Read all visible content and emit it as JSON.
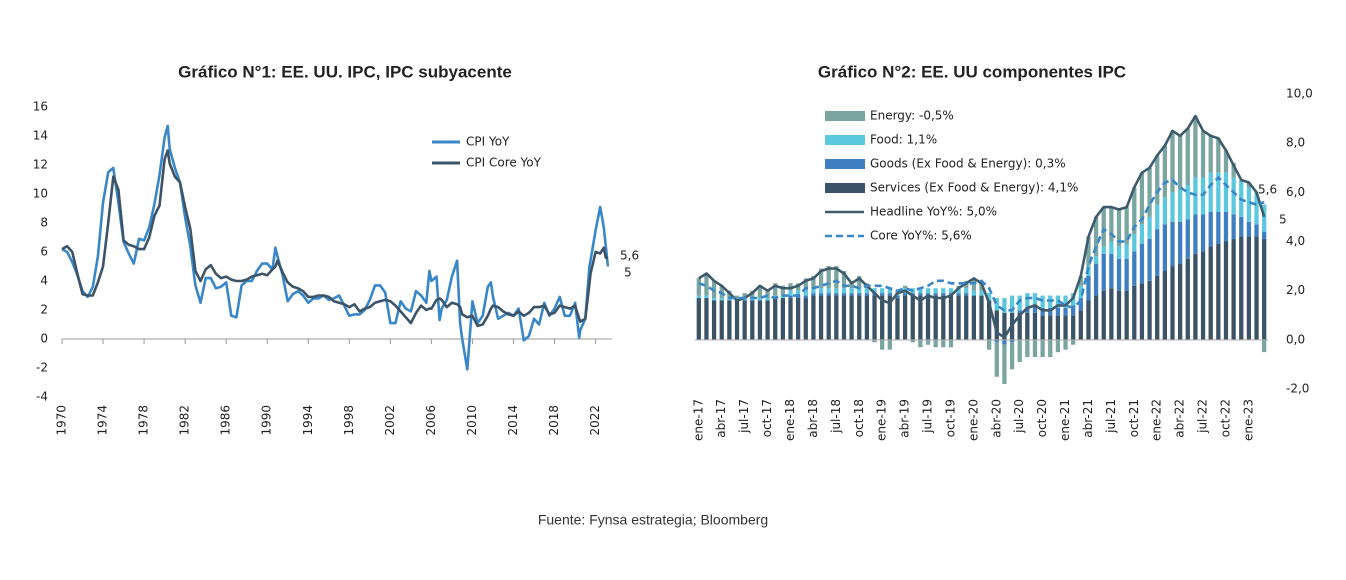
{
  "chart_data": [
    {
      "type": "line",
      "title": "Gráfico N°1:  EE. UU. IPC, IPC subyacente",
      "x": [
        1970,
        1970.5,
        1971,
        1971.5,
        1972,
        1972.5,
        1973,
        1973.5,
        1974,
        1974.5,
        1975,
        1975.5,
        1976,
        1976.5,
        1977,
        1977.5,
        1978,
        1978.5,
        1979,
        1979.5,
        1980,
        1980.3,
        1980.5,
        1981,
        1981.5,
        1982,
        1982.5,
        1983,
        1983.5,
        1984,
        1984.5,
        1985,
        1985.5,
        1986,
        1986.5,
        1987,
        1987.5,
        1988,
        1988.5,
        1989,
        1989.5,
        1990,
        1990.5,
        1990.8,
        1991,
        1991.5,
        1992,
        1992.5,
        1993,
        1993.5,
        1994,
        1994.5,
        1995,
        1995.5,
        1996,
        1996.5,
        1997,
        1997.5,
        1998,
        1998.5,
        1999,
        1999.5,
        2000,
        2000.5,
        2001,
        2001.5,
        2002,
        2002.5,
        2003,
        2003.5,
        2004,
        2004.5,
        2005,
        2005.5,
        2005.8,
        2006,
        2006.5,
        2006.8,
        2007,
        2007.5,
        2008,
        2008.5,
        2008.8,
        2009,
        2009.5,
        2010,
        2010.5,
        2011,
        2011.5,
        2011.8,
        2012,
        2012.5,
        2013,
        2013.5,
        2014,
        2014.5,
        2015,
        2015.5,
        2016,
        2016.5,
        2017,
        2017.5,
        2018,
        2018.5,
        2019,
        2019.5,
        2020,
        2020.4,
        2020.5,
        2021,
        2021.4,
        2021.5,
        2022,
        2022.45,
        2022.8,
        2023,
        2023.2
      ],
      "series": [
        {
          "name": "CPI YoY",
          "color": "#3a87c8",
          "values": [
            6.2,
            6.0,
            5.3,
            4.4,
            3.3,
            2.9,
            3.6,
            5.7,
            9.4,
            11.5,
            11.8,
            9.4,
            6.7,
            5.9,
            5.2,
            6.9,
            6.8,
            7.7,
            9.3,
            11.3,
            13.9,
            14.7,
            13.1,
            11.8,
            10.8,
            8.4,
            6.4,
            3.7,
            2.5,
            4.2,
            4.2,
            3.5,
            3.6,
            3.9,
            1.6,
            1.5,
            3.7,
            4.0,
            4.0,
            4.7,
            5.2,
            5.2,
            4.8,
            6.3,
            5.7,
            4.4,
            2.6,
            3.1,
            3.3,
            3.0,
            2.5,
            2.8,
            2.8,
            3.0,
            2.7,
            2.8,
            3.0,
            2.3,
            1.6,
            1.7,
            1.7,
            2.0,
            2.7,
            3.7,
            3.7,
            3.2,
            1.1,
            1.1,
            2.6,
            2.1,
            1.9,
            3.3,
            3.0,
            2.5,
            4.7,
            4.0,
            4.3,
            1.3,
            2.1,
            2.7,
            4.3,
            5.4,
            1.1,
            0.0,
            -2.1,
            2.6,
            1.1,
            1.6,
            3.6,
            3.9,
            2.9,
            1.4,
            1.6,
            1.8,
            1.6,
            2.1,
            -0.1,
            0.2,
            1.4,
            1.0,
            2.5,
            1.6,
            2.1,
            2.9,
            1.6,
            1.6,
            2.5,
            0.1,
            0.6,
            1.4,
            5.0,
            5.4,
            7.5,
            9.1,
            7.7,
            6.4,
            5.0
          ]
        },
        {
          "name": "CPI  Core YoY",
          "color": "#3d5468",
          "values": [
            6.2,
            6.4,
            6.0,
            4.5,
            3.1,
            3.0,
            3.0,
            3.9,
            5.0,
            8.0,
            11.2,
            10.3,
            6.8,
            6.5,
            6.4,
            6.2,
            6.2,
            7.0,
            8.5,
            9.2,
            12.4,
            13.0,
            12.1,
            11.2,
            10.8,
            9.1,
            7.6,
            4.7,
            4.0,
            4.8,
            5.1,
            4.5,
            4.2,
            4.3,
            4.1,
            4.0,
            4.0,
            4.1,
            4.3,
            4.4,
            4.5,
            4.4,
            4.8,
            5.0,
            5.4,
            4.6,
            3.9,
            3.6,
            3.5,
            3.3,
            2.9,
            2.9,
            3.0,
            3.0,
            2.9,
            2.6,
            2.5,
            2.4,
            2.2,
            2.4,
            1.9,
            2.1,
            2.2,
            2.5,
            2.6,
            2.7,
            2.6,
            2.3,
            1.9,
            1.5,
            1.1,
            1.8,
            2.3,
            2.0,
            2.1,
            2.1,
            2.7,
            2.8,
            2.7,
            2.2,
            2.5,
            2.4,
            2.2,
            1.7,
            1.5,
            1.6,
            0.9,
            1.0,
            1.6,
            2.1,
            2.3,
            2.2,
            1.9,
            1.7,
            1.6,
            1.9,
            1.6,
            1.8,
            2.2,
            2.2,
            2.3,
            1.7,
            1.8,
            2.3,
            2.2,
            2.1,
            2.3,
            1.4,
            1.2,
            1.4,
            3.8,
            4.5,
            6.0,
            5.9,
            6.3,
            5.6,
            5.6
          ]
        }
      ],
      "annotations": [
        "5,6",
        "5"
      ],
      "xlim": [
        1970,
        2023.6
      ],
      "xticks": [
        1970,
        1974,
        1978,
        1982,
        1986,
        1990,
        1994,
        1998,
        2002,
        2006,
        2010,
        2014,
        2018,
        2022
      ],
      "ylim": [
        -4,
        16
      ],
      "yticks": [
        -4,
        -2,
        0,
        2,
        4,
        6,
        8,
        10,
        12,
        14,
        16
      ],
      "grid": false,
      "legend": "upper right"
    },
    {
      "type": "bar",
      "title": "Gráfico N°2:  EE. UU componentes IPC",
      "categories": [
        "ene-17",
        null,
        null,
        "abr-17",
        null,
        null,
        "jul-17",
        null,
        null,
        "oct-17",
        null,
        null,
        "ene-18",
        null,
        null,
        "abr-18",
        null,
        null,
        "jul-18",
        null,
        null,
        "oct-18",
        null,
        null,
        "ene-19",
        null,
        null,
        "abr-19",
        null,
        null,
        "jul-19",
        null,
        null,
        "oct-19",
        null,
        null,
        "ene-20",
        null,
        null,
        "abr-20",
        null,
        null,
        "jul-20",
        null,
        null,
        "oct-20",
        null,
        null,
        "ene-21",
        null,
        null,
        "abr-21",
        null,
        null,
        "jul-21",
        null,
        null,
        "oct-21",
        null,
        null,
        "ene-22",
        null,
        null,
        "abr-22",
        null,
        null,
        "jul-22",
        null,
        null,
        "oct-22",
        null,
        null,
        "ene-23",
        null,
        null
      ],
      "stacked": true,
      "series": [
        {
          "name": "Energy: -0,5%",
          "type": "bar",
          "axis": "y2",
          "color": "#7aa5a0",
          "values": [
            0.7,
            0.9,
            0.7,
            0.5,
            0.3,
            0.1,
            0.2,
            0.3,
            0.5,
            0.3,
            0.5,
            0.4,
            0.3,
            0.3,
            0.5,
            0.5,
            0.8,
            0.9,
            0.9,
            0.7,
            0.3,
            0.5,
            0.2,
            -0.1,
            -0.4,
            -0.4,
            0.0,
            0.1,
            -0.1,
            -0.3,
            -0.2,
            -0.3,
            -0.3,
            -0.3,
            0.1,
            0.3,
            0.5,
            0.3,
            -0.4,
            -1.4,
            -1.6,
            -1.1,
            -0.9,
            -0.7,
            -0.7,
            -0.7,
            -0.7,
            -0.5,
            -0.4,
            -0.2,
            0.4,
            1.2,
            1.6,
            1.6,
            1.4,
            1.5,
            1.5,
            1.9,
            2.1,
            2.0,
            2.0,
            2.1,
            2.5,
            2.2,
            2.3,
            2.5,
            1.9,
            1.5,
            1.4,
            0.9,
            0.6,
            0.0,
            0.2,
            0.0,
            -0.5
          ]
        },
        {
          "name": "Food: 1,1%",
          "type": "bar",
          "axis": "y2",
          "color": "#5bc8dd",
          "values": [
            0.1,
            0.1,
            0.1,
            0.1,
            0.1,
            0.1,
            0.1,
            0.1,
            0.1,
            0.1,
            0.1,
            0.1,
            0.2,
            0.2,
            0.2,
            0.2,
            0.2,
            0.2,
            0.2,
            0.2,
            0.2,
            0.2,
            0.2,
            0.2,
            0.2,
            0.2,
            0.2,
            0.2,
            0.2,
            0.2,
            0.2,
            0.2,
            0.2,
            0.2,
            0.2,
            0.2,
            0.2,
            0.2,
            0.3,
            0.5,
            0.6,
            0.7,
            0.6,
            0.6,
            0.5,
            0.5,
            0.5,
            0.5,
            0.5,
            0.5,
            0.5,
            0.4,
            0.3,
            0.3,
            0.5,
            0.5,
            0.6,
            0.7,
            0.8,
            0.9,
            1.0,
            1.1,
            1.2,
            1.3,
            1.4,
            1.5,
            1.5,
            1.6,
            1.6,
            1.6,
            1.5,
            1.5,
            1.4,
            1.3,
            1.1
          ]
        },
        {
          "name": "Goods (Ex Food & Energy): 0,3%",
          "type": "bar",
          "axis": "y2",
          "color": "#3f7fc1",
          "values": [
            0.0,
            0.0,
            0.0,
            0.0,
            0.0,
            0.0,
            0.0,
            0.0,
            0.0,
            0.0,
            0.0,
            0.0,
            0.1,
            0.1,
            0.1,
            0.1,
            0.1,
            0.1,
            0.1,
            0.1,
            0.1,
            0.1,
            0.1,
            0.1,
            0.1,
            0.1,
            0.1,
            0.1,
            0.1,
            0.1,
            0.1,
            0.1,
            0.1,
            0.1,
            0.1,
            0.1,
            0.0,
            0.0,
            0.0,
            -0.1,
            -0.2,
            -0.1,
            0.1,
            0.2,
            0.3,
            0.3,
            0.3,
            0.3,
            0.3,
            0.4,
            0.5,
            1.0,
            1.3,
            1.5,
            1.4,
            1.3,
            1.3,
            1.4,
            1.6,
            1.7,
            1.9,
            1.9,
            1.8,
            1.7,
            1.6,
            1.6,
            1.5,
            1.4,
            1.3,
            1.2,
            1.0,
            0.8,
            0.6,
            0.5,
            0.3
          ]
        },
        {
          "name": "Services (Ex Food & Energy): 4,1%",
          "type": "bar",
          "axis": "y2",
          "color": "#3a5366",
          "values": [
            1.7,
            1.7,
            1.6,
            1.6,
            1.6,
            1.6,
            1.6,
            1.6,
            1.6,
            1.6,
            1.7,
            1.7,
            1.7,
            1.7,
            1.7,
            1.8,
            1.8,
            1.8,
            1.8,
            1.8,
            1.8,
            1.8,
            1.8,
            1.8,
            1.8,
            1.8,
            1.7,
            1.8,
            1.8,
            1.8,
            1.8,
            1.8,
            1.8,
            1.8,
            1.8,
            1.8,
            1.8,
            1.8,
            1.6,
            1.2,
            1.1,
            1.1,
            1.1,
            1.1,
            1.1,
            1.0,
            1.0,
            1.0,
            1.0,
            1.0,
            1.2,
            1.6,
            1.8,
            2.0,
            2.1,
            2.0,
            2.0,
            2.2,
            2.3,
            2.4,
            2.6,
            2.8,
            3.0,
            3.1,
            3.3,
            3.5,
            3.6,
            3.8,
            3.9,
            4.0,
            4.1,
            4.2,
            4.2,
            4.2,
            4.1
          ]
        },
        {
          "name": "Headline YoY%: 5,0%",
          "type": "line",
          "axis": "y2",
          "color": "#3f5a6b",
          "style": "solid",
          "values": [
            2.5,
            2.7,
            2.4,
            2.2,
            1.9,
            1.6,
            1.7,
            1.9,
            2.2,
            2.0,
            2.2,
            2.1,
            2.1,
            2.2,
            2.4,
            2.5,
            2.8,
            2.9,
            2.9,
            2.7,
            2.3,
            2.5,
            2.2,
            1.9,
            1.6,
            1.5,
            1.9,
            2.0,
            1.8,
            1.6,
            1.8,
            1.7,
            1.7,
            1.8,
            2.1,
            2.3,
            2.5,
            2.3,
            1.5,
            0.3,
            0.1,
            0.6,
            1.0,
            1.3,
            1.4,
            1.2,
            1.2,
            1.4,
            1.4,
            1.7,
            2.6,
            4.2,
            5.0,
            5.4,
            5.4,
            5.3,
            5.4,
            6.2,
            6.8,
            7.0,
            7.5,
            7.9,
            8.5,
            8.3,
            8.6,
            9.1,
            8.5,
            8.3,
            8.2,
            7.7,
            7.1,
            6.5,
            6.4,
            6.0,
            5.0
          ]
        },
        {
          "name": "Core YoY%: 5,6%",
          "type": "line",
          "axis": "y2",
          "color": "#3a87c8",
          "style": "dashed",
          "values": [
            2.3,
            2.2,
            2.0,
            1.9,
            1.7,
            1.7,
            1.7,
            1.7,
            1.7,
            1.8,
            1.7,
            1.8,
            1.8,
            1.8,
            2.1,
            2.1,
            2.2,
            2.3,
            2.4,
            2.2,
            2.2,
            2.1,
            2.2,
            2.2,
            2.2,
            2.1,
            2.0,
            2.1,
            2.0,
            2.1,
            2.2,
            2.4,
            2.4,
            2.3,
            2.3,
            2.3,
            2.3,
            2.4,
            2.1,
            1.4,
            1.2,
            1.2,
            1.6,
            1.7,
            1.7,
            1.6,
            1.6,
            1.6,
            1.4,
            1.3,
            1.6,
            3.0,
            3.8,
            4.5,
            4.3,
            4.0,
            4.0,
            4.6,
            4.9,
            5.5,
            6.0,
            6.4,
            6.5,
            6.2,
            6.0,
            5.9,
            5.9,
            6.3,
            6.6,
            6.3,
            6.0,
            5.7,
            5.6,
            5.5,
            5.6
          ]
        }
      ],
      "annotations": [
        "5,6",
        "5"
      ],
      "y2lim": [
        -2,
        10
      ],
      "y2ticks": [
        {
          "value": -2,
          "label": "-2,0"
        },
        {
          "value": 0,
          "label": "0,0"
        },
        {
          "value": 2,
          "label": "2,0"
        },
        {
          "value": 4,
          "label": "4,0"
        },
        {
          "value": 6,
          "label": "6,0"
        },
        {
          "value": 8,
          "label": "8,0"
        },
        {
          "value": 10,
          "label": "10,0"
        }
      ],
      "grid": false,
      "legend": "upper left"
    }
  ],
  "source": "Fuente: Fynsa estrategia; Bloomberg"
}
